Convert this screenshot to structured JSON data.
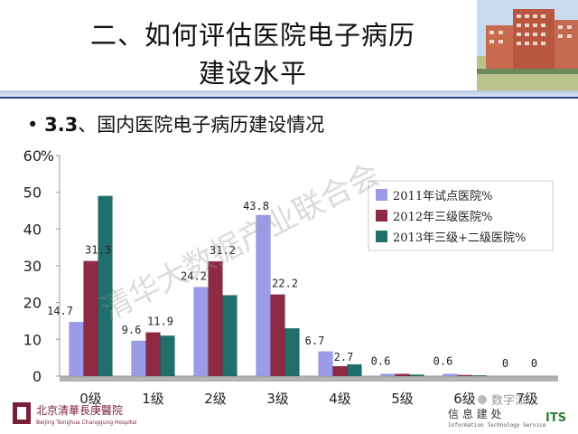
{
  "slide": {
    "title_line1": "二、如何评估医院电子病历",
    "title_line2": "建设水平",
    "subtitle_bullet": "•",
    "subtitle_number": "3.3",
    "subtitle_text": "、国内医院电子病历建设情况",
    "footer_hospital_cn": "北京清華長庚醫院",
    "footer_hospital_en": "Beijing Tsinghua Changgung Hospital",
    "footer_dept_cn": "信 息   建 处",
    "footer_dept_en": "Information Technology Service",
    "footer_wechat": "数字派",
    "footer_logo_text": "ITS",
    "watermark_text": "清华大数据产业联合会"
  },
  "colors": {
    "series_2011": "#9b9be8",
    "series_2012": "#8e2a44",
    "series_2013": "#1f6f6c",
    "header_line": "#1f3f8c"
  },
  "chart_data": {
    "type": "bar",
    "title": "",
    "xlabel": "",
    "ylabel": "%",
    "ylim": [
      0,
      60
    ],
    "yticks": [
      0,
      10,
      20,
      30,
      40,
      50,
      60
    ],
    "ytick_labels": [
      "0",
      "10",
      "20",
      "30",
      "40",
      "50",
      "60"
    ],
    "grid": false,
    "legend_position": "upper-right",
    "categories": [
      "0级",
      "1级",
      "2级",
      "3级",
      "4级",
      "5级",
      "6级",
      "7级"
    ],
    "series": [
      {
        "name": "2011年试点医院%",
        "values": [
          14.7,
          9.6,
          24.2,
          43.8,
          6.7,
          0.6,
          0.6,
          0
        ],
        "labels": [
          "14.7",
          "9.6",
          "24.2",
          "43.8",
          "6.7",
          "0.6",
          "0.6",
          "0"
        ]
      },
      {
        "name": "2012年三级医院%",
        "values": [
          31.3,
          11.9,
          31.2,
          22.2,
          2.7,
          0.6,
          0.3,
          0
        ],
        "labels": [
          "31.3",
          "11.9",
          "31.2",
          "22.2",
          "2.7",
          "",
          "",
          "0"
        ]
      },
      {
        "name": "2013年三级+二级医院%",
        "values": [
          49.0,
          11.0,
          22.0,
          13.0,
          3.2,
          0.4,
          0.2,
          0
        ],
        "labels": []
      }
    ]
  }
}
